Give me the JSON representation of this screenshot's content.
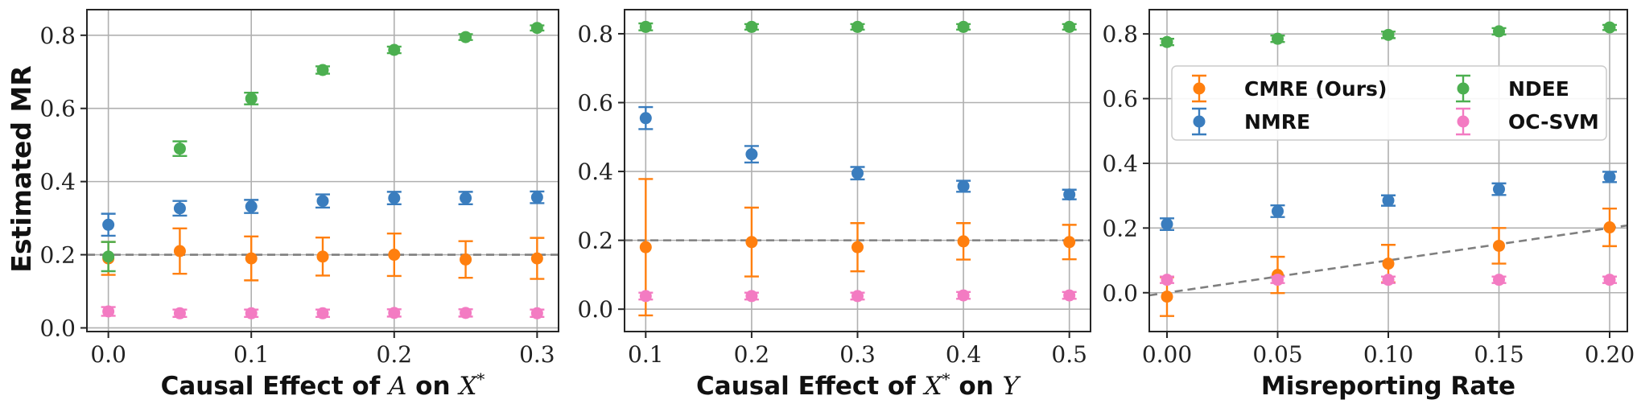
{
  "ylabel": "Estimated MR",
  "colors": {
    "CMRE (Ours)": "#ff7f0e",
    "NMRE": "#3a7dbe",
    "NDEE": "#4caf50",
    "OC-SVM": "#f37bc2",
    "reference": "#7f7f7f"
  },
  "legend": {
    "placement": "upper-center of third panel",
    "entries": [
      "CMRE (Ours)",
      "NMRE",
      "NDEE",
      "OC-SVM"
    ]
  },
  "chart_data": [
    {
      "type": "scatter",
      "xlabel_parts": {
        "pre": "Causal Effect of ",
        "var1": "A",
        "mid": " on ",
        "var2": "X",
        "sup": "*"
      },
      "xticks": [
        "0.0",
        "0.1",
        "0.2",
        "0.3"
      ],
      "xtick_values": [
        0.0,
        0.1,
        0.2,
        0.3
      ],
      "yticks": [
        "0.0",
        "0.2",
        "0.4",
        "0.6",
        "0.8"
      ],
      "ytick_values": [
        0.0,
        0.2,
        0.4,
        0.6,
        0.8
      ],
      "xlim": [
        -0.015,
        0.315
      ],
      "ylim": [
        -0.01,
        0.87
      ],
      "grid": true,
      "reference_line": {
        "x": [
          -0.015,
          0.315
        ],
        "y": [
          0.2,
          0.2
        ]
      },
      "x": [
        0.0,
        0.05,
        0.1,
        0.15,
        0.2,
        0.25,
        0.3
      ],
      "series": [
        {
          "name": "CMRE (Ours)",
          "values": [
            0.19,
            0.21,
            0.19,
            0.195,
            0.2,
            0.187,
            0.19
          ],
          "err": [
            0.045,
            0.062,
            0.06,
            0.052,
            0.058,
            0.05,
            0.056
          ]
        },
        {
          "name": "NMRE",
          "values": [
            0.282,
            0.327,
            0.332,
            0.347,
            0.355,
            0.355,
            0.357
          ],
          "err": [
            0.03,
            0.02,
            0.018,
            0.018,
            0.017,
            0.017,
            0.016
          ]
        },
        {
          "name": "NDEE",
          "values": [
            0.195,
            0.49,
            0.627,
            0.705,
            0.76,
            0.795,
            0.82
          ],
          "err": [
            0.04,
            0.02,
            0.016,
            0.01,
            0.009,
            0.008,
            0.007
          ]
        },
        {
          "name": "OC-SVM",
          "values": [
            0.045,
            0.04,
            0.04,
            0.04,
            0.041,
            0.041,
            0.04
          ],
          "err": [
            0.012,
            0.01,
            0.01,
            0.01,
            0.01,
            0.01,
            0.01
          ]
        }
      ]
    },
    {
      "type": "scatter",
      "xlabel_parts": {
        "pre": "Causal Effect of ",
        "var1": "X",
        "sup1": "*",
        "mid": " on ",
        "var2": "Y"
      },
      "xticks": [
        "0.1",
        "0.2",
        "0.3",
        "0.4",
        "0.5"
      ],
      "xtick_values": [
        0.1,
        0.2,
        0.3,
        0.4,
        0.5
      ],
      "yticks": [
        "0.0",
        "0.2",
        "0.4",
        "0.6",
        "0.8"
      ],
      "ytick_values": [
        0.0,
        0.2,
        0.4,
        0.6,
        0.8
      ],
      "xlim": [
        0.08,
        0.52
      ],
      "ylim": [
        -0.065,
        0.87
      ],
      "grid": true,
      "reference_line": {
        "x": [
          0.08,
          0.52
        ],
        "y": [
          0.2,
          0.2
        ]
      },
      "x": [
        0.1,
        0.2,
        0.3,
        0.4,
        0.5
      ],
      "series": [
        {
          "name": "CMRE (Ours)",
          "values": [
            0.18,
            0.195,
            0.18,
            0.197,
            0.195
          ],
          "err": [
            0.198,
            0.1,
            0.07,
            0.053,
            0.05
          ]
        },
        {
          "name": "NMRE",
          "values": [
            0.555,
            0.45,
            0.395,
            0.357,
            0.333
          ],
          "err": [
            0.032,
            0.024,
            0.018,
            0.016,
            0.014
          ]
        },
        {
          "name": "NDEE",
          "values": [
            0.82,
            0.82,
            0.82,
            0.82,
            0.82
          ],
          "err": [
            0.01,
            0.008,
            0.008,
            0.008,
            0.008
          ]
        },
        {
          "name": "OC-SVM",
          "values": [
            0.038,
            0.038,
            0.038,
            0.04,
            0.04
          ],
          "err": [
            0.01,
            0.01,
            0.01,
            0.01,
            0.01
          ]
        }
      ]
    },
    {
      "type": "scatter",
      "xlabel": "Misreporting Rate",
      "xticks": [
        "0.00",
        "0.05",
        "0.10",
        "0.15",
        "0.20"
      ],
      "xtick_values": [
        0.0,
        0.05,
        0.1,
        0.15,
        0.2
      ],
      "yticks": [
        "0.0",
        "0.2",
        "0.4",
        "0.6",
        "0.8"
      ],
      "ytick_values": [
        0.0,
        0.2,
        0.4,
        0.6,
        0.8
      ],
      "xlim": [
        -0.008,
        0.208
      ],
      "ylim": [
        -0.12,
        0.875
      ],
      "grid": true,
      "reference_line": {
        "x": [
          -0.008,
          0.208
        ],
        "y": [
          -0.008,
          0.208
        ]
      },
      "x": [
        0.0,
        0.05,
        0.1,
        0.15,
        0.2
      ],
      "series": [
        {
          "name": "CMRE (Ours)",
          "values": [
            -0.012,
            0.055,
            0.09,
            0.145,
            0.202
          ],
          "err": [
            0.06,
            0.056,
            0.058,
            0.055,
            0.058
          ]
        },
        {
          "name": "NMRE",
          "values": [
            0.212,
            0.252,
            0.285,
            0.32,
            0.358
          ],
          "err": [
            0.018,
            0.018,
            0.016,
            0.018,
            0.016
          ]
        },
        {
          "name": "NDEE",
          "values": [
            0.775,
            0.785,
            0.797,
            0.808,
            0.82
          ],
          "err": [
            0.01,
            0.01,
            0.01,
            0.01,
            0.008
          ]
        },
        {
          "name": "OC-SVM",
          "values": [
            0.04,
            0.04,
            0.04,
            0.04,
            0.04
          ],
          "err": [
            0.01,
            0.01,
            0.01,
            0.01,
            0.01
          ]
        }
      ]
    }
  ]
}
